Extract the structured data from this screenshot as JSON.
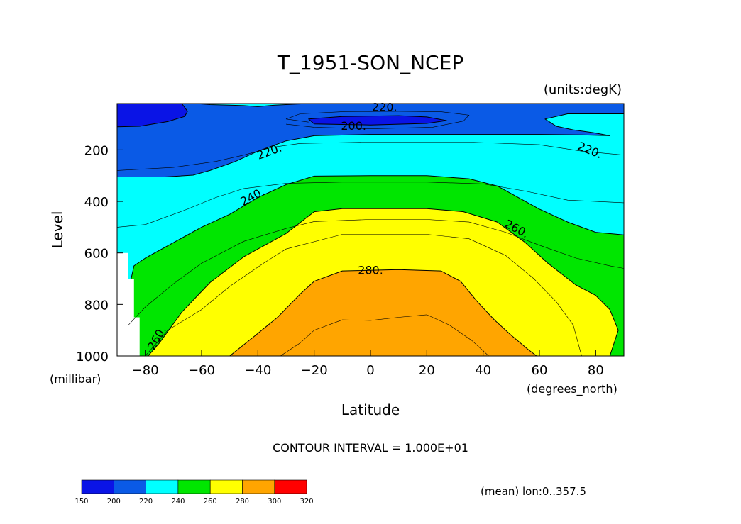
{
  "chart_data": {
    "type": "heatmap",
    "title": "T_1951-SON_NCEP",
    "units_label": "(units:degK)",
    "xlabel": "Latitude",
    "xunits": "(degrees_north)",
    "ylabel": "Level",
    "yunits": "(millibar)",
    "xlim": [
      -90,
      90
    ],
    "ylim": [
      1000,
      20
    ],
    "y_reversed": true,
    "xticks": [
      "-80",
      "-60",
      "-40",
      "-20",
      "0",
      "20",
      "40",
      "60",
      "80"
    ],
    "yticks": [
      "200",
      "400",
      "600",
      "800",
      "1000"
    ],
    "contour_interval_text": "CONTOUR INTERVAL = 1.000E+01",
    "contour_labels": [
      "220.",
      "200.",
      "220.",
      "220.",
      "240.",
      "260.",
      "280.",
      "260."
    ],
    "mean_text": "(mean) lon:0..357.5",
    "colorbar": {
      "levels": [
        "150",
        "200",
        "220",
        "240",
        "260",
        "280",
        "300",
        "320"
      ],
      "colors": [
        "#0a14e6",
        "#0a5ae6",
        "#00ffff",
        "#00e600",
        "#ffff00",
        "#ffa500",
        "#ff0000"
      ]
    },
    "bands": [
      {
        "range": "150-200",
        "color": "#0a14e6"
      },
      {
        "range": "200-220",
        "color": "#0a5ae6"
      },
      {
        "range": "220-240",
        "color": "#00ffff"
      },
      {
        "range": "240-260",
        "color": "#00e600"
      },
      {
        "range": "260-280",
        "color": "#ffff00"
      },
      {
        "range": "280-300",
        "color": "#ffa500"
      }
    ]
  }
}
